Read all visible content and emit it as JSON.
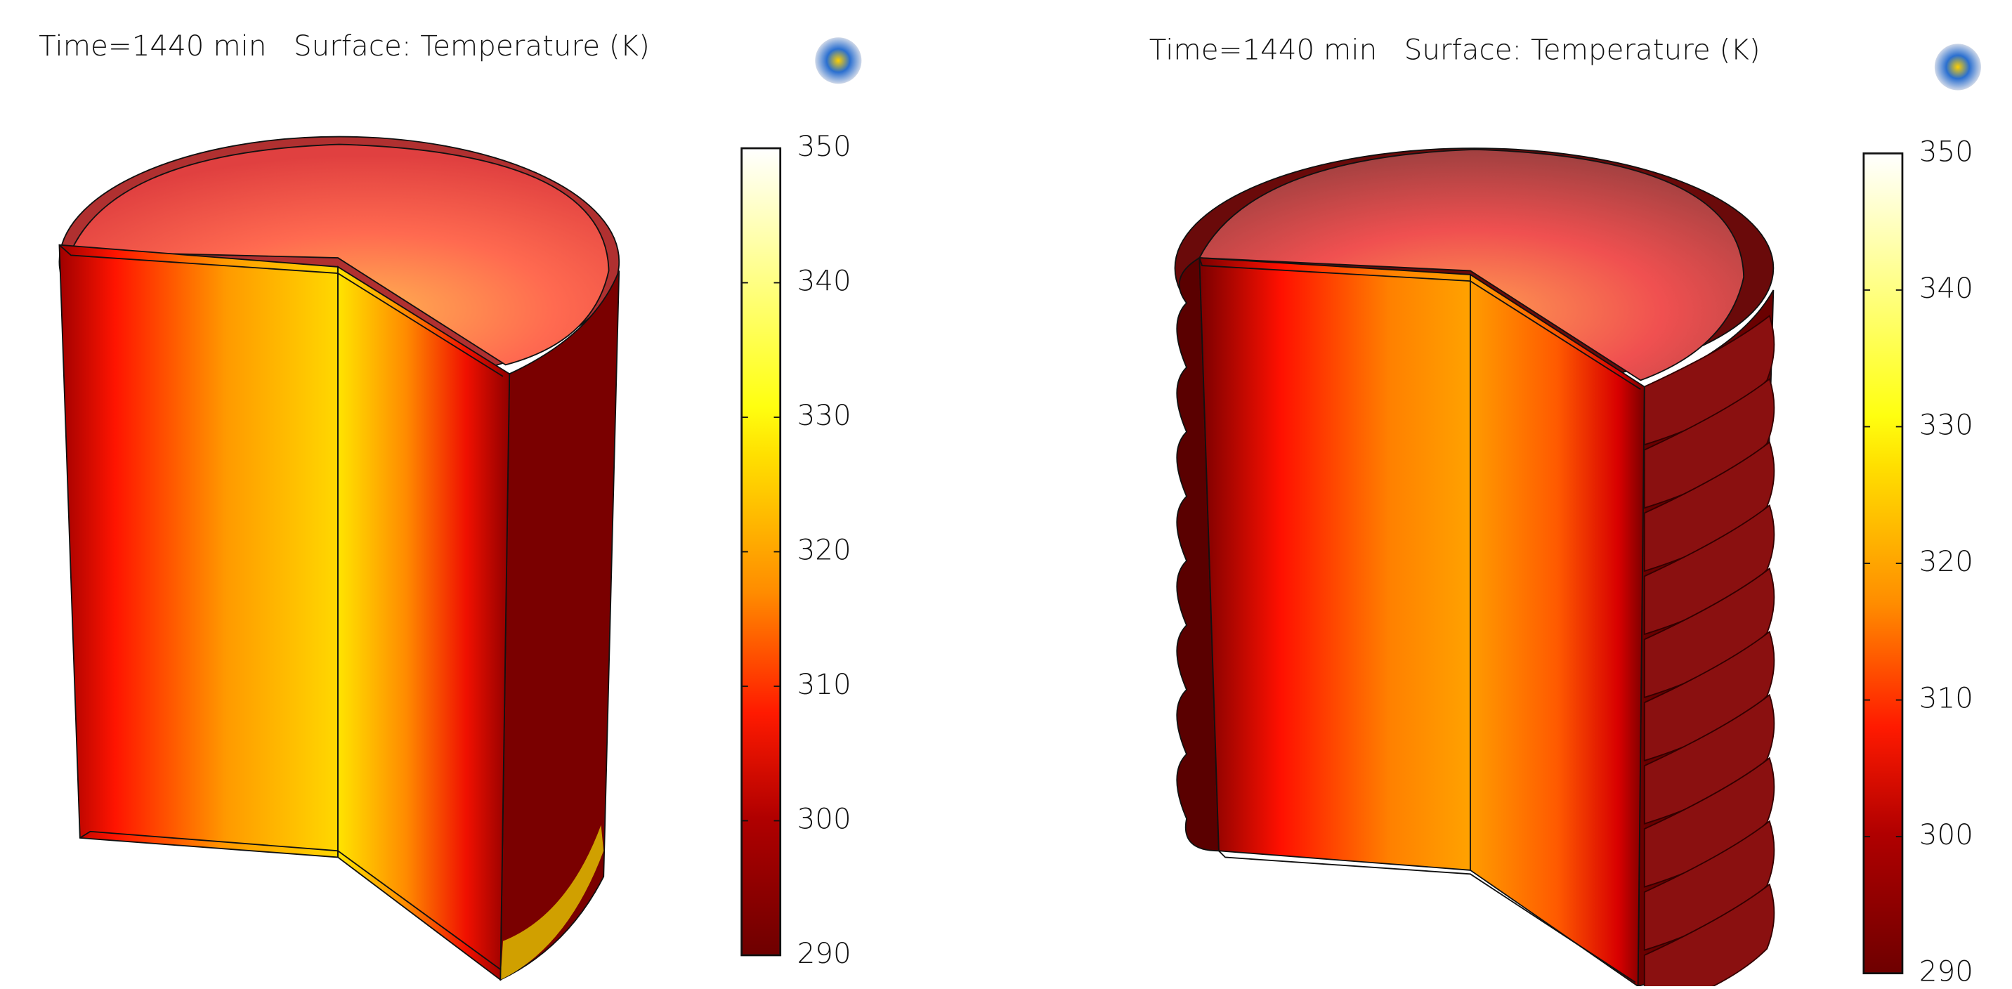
{
  "chart_data": [
    {
      "type": "surface",
      "title": "Time=1440 min   Surface: Temperature (K)",
      "clim": [
        290,
        350
      ],
      "cticks": [
        290,
        300,
        310,
        320,
        330,
        340,
        350
      ]
    },
    {
      "type": "surface",
      "title": "Time=1440 min   Surface: Temperature (K)",
      "clim": [
        290,
        350
      ],
      "cticks": [
        290,
        300,
        310,
        320,
        330,
        340,
        350
      ]
    }
  ]
}
